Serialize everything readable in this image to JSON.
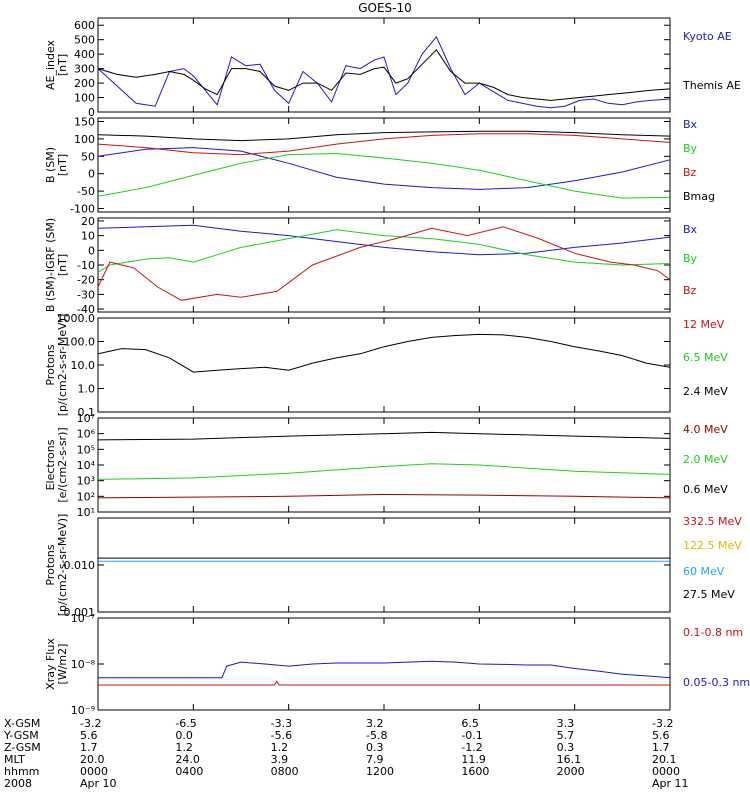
{
  "title": "GOES-10",
  "x_ticks": [
    "0000",
    "0400",
    "0800",
    "1200",
    "1600",
    "2000",
    "0000"
  ],
  "colors": {
    "black": "#000000",
    "blue": "#1a1acc",
    "red": "#cc1111",
    "green": "#22cc22",
    "darkred": "#990000",
    "cyan": "#22aaee",
    "yellow": "#ddbb00"
  },
  "chart_data": [
    {
      "type": "line",
      "id": "ae",
      "ylabel": "AE_index\n[nT]",
      "ylim": [
        0,
        650
      ],
      "yscale": "linear",
      "yticks": [
        0,
        100,
        200,
        300,
        400,
        500,
        600
      ],
      "series": [
        {
          "name": "Kyoto AE",
          "color": "blue",
          "x": [
            0,
            0.8,
            1.6,
            2.4,
            3,
            3.6,
            4,
            4.5,
            5,
            5.6,
            6.2,
            6.8,
            7.4,
            8,
            8.6,
            9.2,
            9.8,
            10.4,
            11,
            11.6,
            12,
            12.5,
            13,
            13.6,
            14.2,
            14.8,
            15.4,
            16,
            16.6,
            17.2,
            17.8,
            18.4,
            19,
            19.6,
            20.2,
            20.8,
            21.4,
            22,
            22.6,
            23.2,
            24
          ],
          "y": [
            300,
            180,
            60,
            40,
            280,
            300,
            250,
            150,
            50,
            380,
            320,
            330,
            150,
            60,
            280,
            200,
            70,
            320,
            300,
            360,
            380,
            120,
            200,
            400,
            520,
            300,
            120,
            200,
            140,
            80,
            60,
            40,
            30,
            40,
            80,
            90,
            60,
            50,
            70,
            80,
            90
          ]
        },
        {
          "name": "Themis AE",
          "color": "black",
          "x": [
            0,
            0.8,
            1.6,
            2.4,
            3,
            3.6,
            4,
            4.5,
            5,
            5.6,
            6.2,
            6.8,
            7.4,
            8,
            8.6,
            9.2,
            9.8,
            10.4,
            11,
            11.6,
            12,
            12.5,
            13,
            13.6,
            14.2,
            14.8,
            15.4,
            16,
            16.6,
            17.2,
            17.8,
            18.4,
            19,
            19.6,
            20.2,
            20.8,
            21.4,
            22,
            22.6,
            23.2,
            24
          ],
          "y": [
            300,
            260,
            240,
            260,
            280,
            260,
            220,
            160,
            120,
            300,
            300,
            280,
            180,
            150,
            200,
            200,
            150,
            270,
            260,
            300,
            310,
            200,
            230,
            330,
            430,
            280,
            200,
            200,
            170,
            120,
            100,
            90,
            80,
            90,
            100,
            110,
            120,
            130,
            140,
            150,
            160
          ]
        }
      ]
    },
    {
      "type": "line",
      "id": "bsm",
      "ylabel": "B (SM)\n[nT]",
      "ylim": [
        -110,
        160
      ],
      "yscale": "linear",
      "yticks": [
        -100,
        -50,
        0,
        50,
        100,
        150
      ],
      "series": [
        {
          "name": "Bx",
          "color": "blue",
          "x": [
            0,
            2,
            4,
            6,
            8,
            10,
            12,
            14,
            16,
            18,
            20,
            22,
            24
          ],
          "y": [
            50,
            70,
            75,
            65,
            30,
            -10,
            -30,
            -40,
            -45,
            -40,
            -20,
            5,
            40
          ]
        },
        {
          "name": "By",
          "color": "green",
          "x": [
            0,
            2,
            4,
            6,
            8,
            10,
            12,
            14,
            16,
            18,
            20,
            22,
            24
          ],
          "y": [
            -65,
            -40,
            -5,
            30,
            55,
            58,
            45,
            30,
            10,
            -20,
            -50,
            -70,
            -68
          ]
        },
        {
          "name": "Bz",
          "color": "red",
          "x": [
            0,
            2,
            4,
            6,
            8,
            10,
            12,
            14,
            16,
            18,
            20,
            22,
            24
          ],
          "y": [
            85,
            75,
            60,
            55,
            65,
            85,
            100,
            110,
            115,
            115,
            110,
            100,
            90
          ]
        },
        {
          "name": "Bmag",
          "color": "black",
          "x": [
            0,
            2,
            4,
            6,
            8,
            10,
            12,
            14,
            16,
            18,
            20,
            22,
            24
          ],
          "y": [
            112,
            108,
            100,
            95,
            100,
            112,
            118,
            120,
            122,
            122,
            118,
            112,
            108
          ]
        }
      ]
    },
    {
      "type": "line",
      "id": "bigrf",
      "ylabel": "B (SM)-IGRF (SM)\n[nT]",
      "ylim": [
        -42,
        22
      ],
      "yscale": "linear",
      "yticks": [
        -40,
        -30,
        -20,
        -10,
        0,
        10,
        20
      ],
      "series": [
        {
          "name": "Bx",
          "color": "blue",
          "x": [
            0,
            2,
            4,
            6,
            8,
            10,
            12,
            14,
            16,
            18,
            20,
            22,
            24
          ],
          "y": [
            15,
            16,
            17,
            13,
            10,
            6,
            2,
            -1,
            -3,
            -2,
            2,
            5,
            9
          ]
        },
        {
          "name": "By",
          "color": "green",
          "x": [
            0,
            0.5,
            2,
            3,
            4,
            5,
            6,
            8,
            10,
            12,
            14,
            16,
            18,
            20,
            22,
            24
          ],
          "y": [
            -15,
            -10,
            -6,
            -5,
            -8,
            -3,
            2,
            8,
            14,
            10,
            8,
            4,
            -3,
            -8,
            -10,
            -9
          ]
        },
        {
          "name": "Bz",
          "color": "red",
          "x": [
            0,
            0.5,
            1.5,
            2.5,
            3.5,
            5,
            6,
            7.5,
            9,
            11,
            12.5,
            14,
            15.5,
            17,
            18.5,
            20,
            21.5,
            22.5,
            23.5,
            24
          ],
          "y": [
            -25,
            -8,
            -12,
            -25,
            -34,
            -30,
            -32,
            -28,
            -10,
            2,
            8,
            15,
            10,
            16,
            8,
            -2,
            -8,
            -10,
            -14,
            -20
          ]
        }
      ]
    },
    {
      "type": "line",
      "id": "protons1",
      "ylabel": "Protons\n[p/(cm2-s-sr-MeV)]",
      "ylim": [
        0.1,
        1000
      ],
      "yscale": "log",
      "yticks": [
        0.1,
        1.0,
        10.0,
        100.0,
        1000.0
      ],
      "ytick_labels": [
        "0.1",
        "1.0",
        "10.0",
        "100.0",
        "1000.0"
      ],
      "series": [
        {
          "name": "12 MeV",
          "color": "red",
          "x": [],
          "y": []
        },
        {
          "name": "6.5 MeV",
          "color": "green",
          "x": [],
          "y": []
        },
        {
          "name": "2.4 MeV",
          "color": "black",
          "x": [
            0,
            1,
            2,
            3,
            4,
            5,
            6,
            7,
            8,
            9,
            10,
            11,
            12,
            13,
            14,
            15,
            16,
            17,
            18,
            19,
            20,
            21,
            22,
            23,
            24
          ],
          "y": [
            30,
            50,
            45,
            20,
            5,
            6,
            7,
            8,
            6,
            12,
            20,
            30,
            60,
            100,
            150,
            180,
            200,
            190,
            150,
            100,
            60,
            40,
            25,
            12,
            8
          ]
        }
      ]
    },
    {
      "type": "line",
      "id": "electrons",
      "ylabel": "Electrons\n[e/(cm2-s-sr)]",
      "ylim": [
        10,
        10000000.0
      ],
      "yscale": "log",
      "yticks": [
        10,
        100,
        1000,
        10000,
        100000,
        1000000,
        10000000
      ],
      "ytick_labels": [
        "10¹",
        "10²",
        "10³",
        "10⁴",
        "10⁵",
        "10⁶",
        "10⁷"
      ],
      "series": [
        {
          "name": "4.0 MeV",
          "color": "darkred",
          "x": [
            0,
            4,
            8,
            12,
            16,
            20,
            24
          ],
          "y": [
            80,
            90,
            100,
            130,
            120,
            100,
            80
          ]
        },
        {
          "name": "2.0 MeV",
          "color": "green",
          "x": [
            0,
            4,
            8,
            12,
            14,
            16,
            20,
            24
          ],
          "y": [
            1200,
            1500,
            3000,
            8000,
            12000,
            10000,
            4000,
            2500
          ]
        },
        {
          "name": "0.6 MeV",
          "color": "black",
          "x": [
            0,
            4,
            8,
            12,
            14,
            16,
            20,
            24
          ],
          "y": [
            400000,
            450000,
            700000,
            1000000,
            1200000,
            1000000,
            700000,
            500000
          ]
        }
      ]
    },
    {
      "type": "line",
      "id": "protons2",
      "ylabel": "Protons\n[p/(cm2-s-sr-MeV)]",
      "ylim": [
        0.001,
        0.1
      ],
      "yscale": "log",
      "yticks": [
        0.001,
        0.01
      ],
      "ytick_labels": [
        "0.001",
        "0.010"
      ],
      "series": [
        {
          "name": "332.5 MeV",
          "color": "red",
          "x": [],
          "y": []
        },
        {
          "name": "122.5 MeV",
          "color": "yellow",
          "x": [],
          "y": []
        },
        {
          "name": "60 MeV",
          "color": "cyan",
          "x": [
            0,
            24
          ],
          "y": [
            0.012,
            0.012
          ]
        },
        {
          "name": "27.5 MeV",
          "color": "black",
          "x": [
            0,
            24
          ],
          "y": [
            0.014,
            0.014
          ]
        }
      ]
    },
    {
      "type": "line",
      "id": "xray",
      "ylabel": "Xray Flux\n[W/m2]",
      "ylim": [
        1e-09,
        1e-07
      ],
      "yscale": "log",
      "yticks": [
        1e-09,
        1e-08,
        1e-07
      ],
      "ytick_labels": [
        "10⁻⁹",
        "10⁻⁸",
        "10⁻⁷"
      ],
      "series": [
        {
          "name": "0.1-0.8 nm",
          "color": "red",
          "x": [
            0,
            7.4,
            7.5,
            7.6,
            24
          ],
          "y": [
            3.5e-09,
            3.5e-09,
            4.2e-09,
            3.5e-09,
            3.5e-09
          ]
        },
        {
          "name": "0.05-0.3 nm",
          "color": "blue",
          "x": [
            0,
            5.2,
            5.4,
            6,
            7,
            8,
            9,
            10,
            12,
            13,
            14,
            15,
            16,
            17,
            18,
            19,
            20,
            21,
            22,
            23,
            24
          ],
          "y": [
            5e-09,
            5e-09,
            9e-09,
            1.1e-08,
            1e-08,
            9e-09,
            1e-08,
            1.05e-08,
            1.05e-08,
            1.1e-08,
            1.15e-08,
            1.1e-08,
            1e-08,
            9.8e-09,
            9.5e-09,
            9.5e-09,
            8e-09,
            7e-09,
            6e-09,
            5.5e-09,
            5e-09
          ]
        }
      ]
    }
  ],
  "footer": [
    {
      "label": "X-GSM",
      "values": [
        "-3.2",
        "-6.5",
        "-3.3",
        "3.2",
        "6.5",
        "3.3",
        "-3.2"
      ]
    },
    {
      "label": "Y-GSM",
      "values": [
        "5.6",
        "0.0",
        "-5.6",
        "-5.8",
        "-0.1",
        "5.7",
        "5.6"
      ]
    },
    {
      "label": "Z-GSM",
      "values": [
        "1.7",
        "1.2",
        "1.2",
        "0.3",
        "-1.2",
        "0.3",
        "1.7"
      ]
    },
    {
      "label": "MLT",
      "values": [
        "20.0",
        "24.0",
        "3.9",
        "7.9",
        "11.9",
        "16.1",
        "20.1"
      ]
    },
    {
      "label": "hhmm",
      "values": [
        "0000",
        "0400",
        "0800",
        "1200",
        "1600",
        "2000",
        "0000"
      ]
    },
    {
      "label": "2008",
      "values": [
        "Apr 10",
        "",
        "",
        "",
        "",
        "",
        "Apr 11"
      ]
    }
  ]
}
